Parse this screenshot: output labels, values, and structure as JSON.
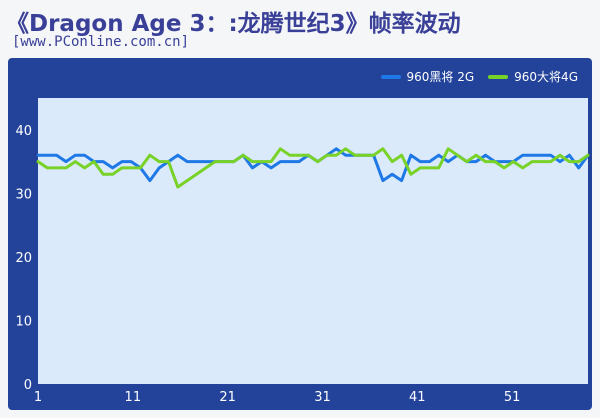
{
  "header": {
    "title": "《Dragon Age 3：:龙腾世纪3》帧率波动",
    "subtitle": "[www.PConline.com.cn]"
  },
  "colors": {
    "frame": "#23439a",
    "plot_bg": "#dbeafb",
    "series_1": "#1e78e6",
    "series_2": "#78d228"
  },
  "chart_data": {
    "type": "line",
    "title": "《Dragon Age 3：:龙腾世纪3》帧率波动",
    "xlabel": "",
    "ylabel": "",
    "xlim": [
      1,
      59
    ],
    "ylim": [
      0,
      45
    ],
    "x_ticks": [
      1,
      11,
      21,
      31,
      41,
      51
    ],
    "y_ticks": [
      0,
      10,
      20,
      30,
      40
    ],
    "grid": false,
    "legend": "top-right",
    "series": [
      {
        "name": "960黑将 2G",
        "color": "#1e78e6",
        "values": [
          36,
          36,
          36,
          35,
          36,
          36,
          35,
          35,
          34,
          35,
          35,
          34,
          32,
          34,
          35,
          36,
          35,
          35,
          35,
          35,
          35,
          35,
          36,
          34,
          35,
          34,
          35,
          35,
          35,
          36,
          35,
          36,
          37,
          36,
          36,
          36,
          36,
          32,
          33,
          32,
          36,
          35,
          35,
          36,
          35,
          36,
          35,
          35,
          36,
          35,
          35,
          35,
          36,
          36,
          36,
          36,
          35,
          36,
          34,
          36
        ]
      },
      {
        "name": "960大将4G",
        "color": "#78d228",
        "values": [
          35,
          34,
          34,
          34,
          35,
          34,
          35,
          33,
          33,
          34,
          34,
          34,
          36,
          35,
          35,
          31,
          32,
          33,
          34,
          35,
          35,
          35,
          36,
          35,
          35,
          35,
          37,
          36,
          36,
          36,
          35,
          36,
          36,
          37,
          36,
          36,
          36,
          37,
          35,
          36,
          33,
          34,
          34,
          34,
          37,
          36,
          35,
          36,
          35,
          35,
          34,
          35,
          34,
          35,
          35,
          35,
          36,
          35,
          35,
          36
        ]
      }
    ]
  }
}
